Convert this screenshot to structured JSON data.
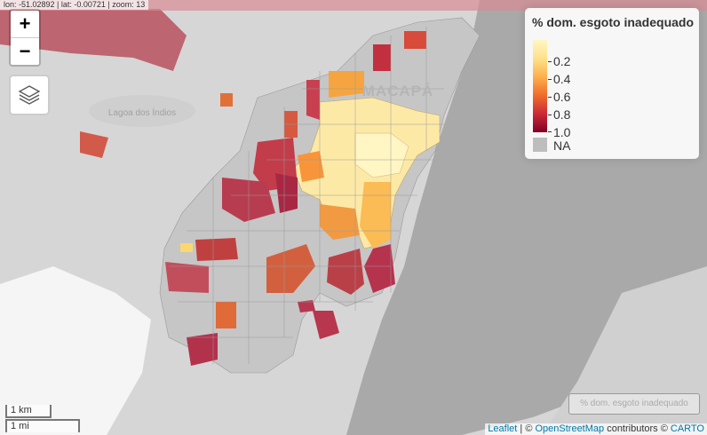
{
  "coordinates_readout": "lon: -51.02892 | lat: -0.00721 | zoom: 13",
  "zoom_controls": {
    "zoom_in": "+",
    "zoom_out": "−"
  },
  "map_labels": {
    "city": "MACAPÁ",
    "lagoon": "Lagoa dos Índios"
  },
  "legend": {
    "title": "% dom. esgoto inadequado",
    "ticks": [
      "0.2",
      "0.4",
      "0.6",
      "0.8",
      "1.0"
    ],
    "na_label": "NA",
    "colors": [
      "#fff6c4",
      "#fde28a",
      "#fdb04c",
      "#ef6c2b",
      "#cc2a36",
      "#800026"
    ],
    "na_color": "#bdbdbd"
  },
  "layer_toggle_button": "% dom. esgoto inadequado",
  "scale": {
    "km": "1 km",
    "mi": "1 mi"
  },
  "attribution": {
    "leaflet": "Leaflet",
    "sep1": " | © ",
    "osm": "OpenStreetMap",
    "mid": " contributors © ",
    "carto": "CARTO"
  },
  "icons": {
    "layers": "layers-icon"
  }
}
